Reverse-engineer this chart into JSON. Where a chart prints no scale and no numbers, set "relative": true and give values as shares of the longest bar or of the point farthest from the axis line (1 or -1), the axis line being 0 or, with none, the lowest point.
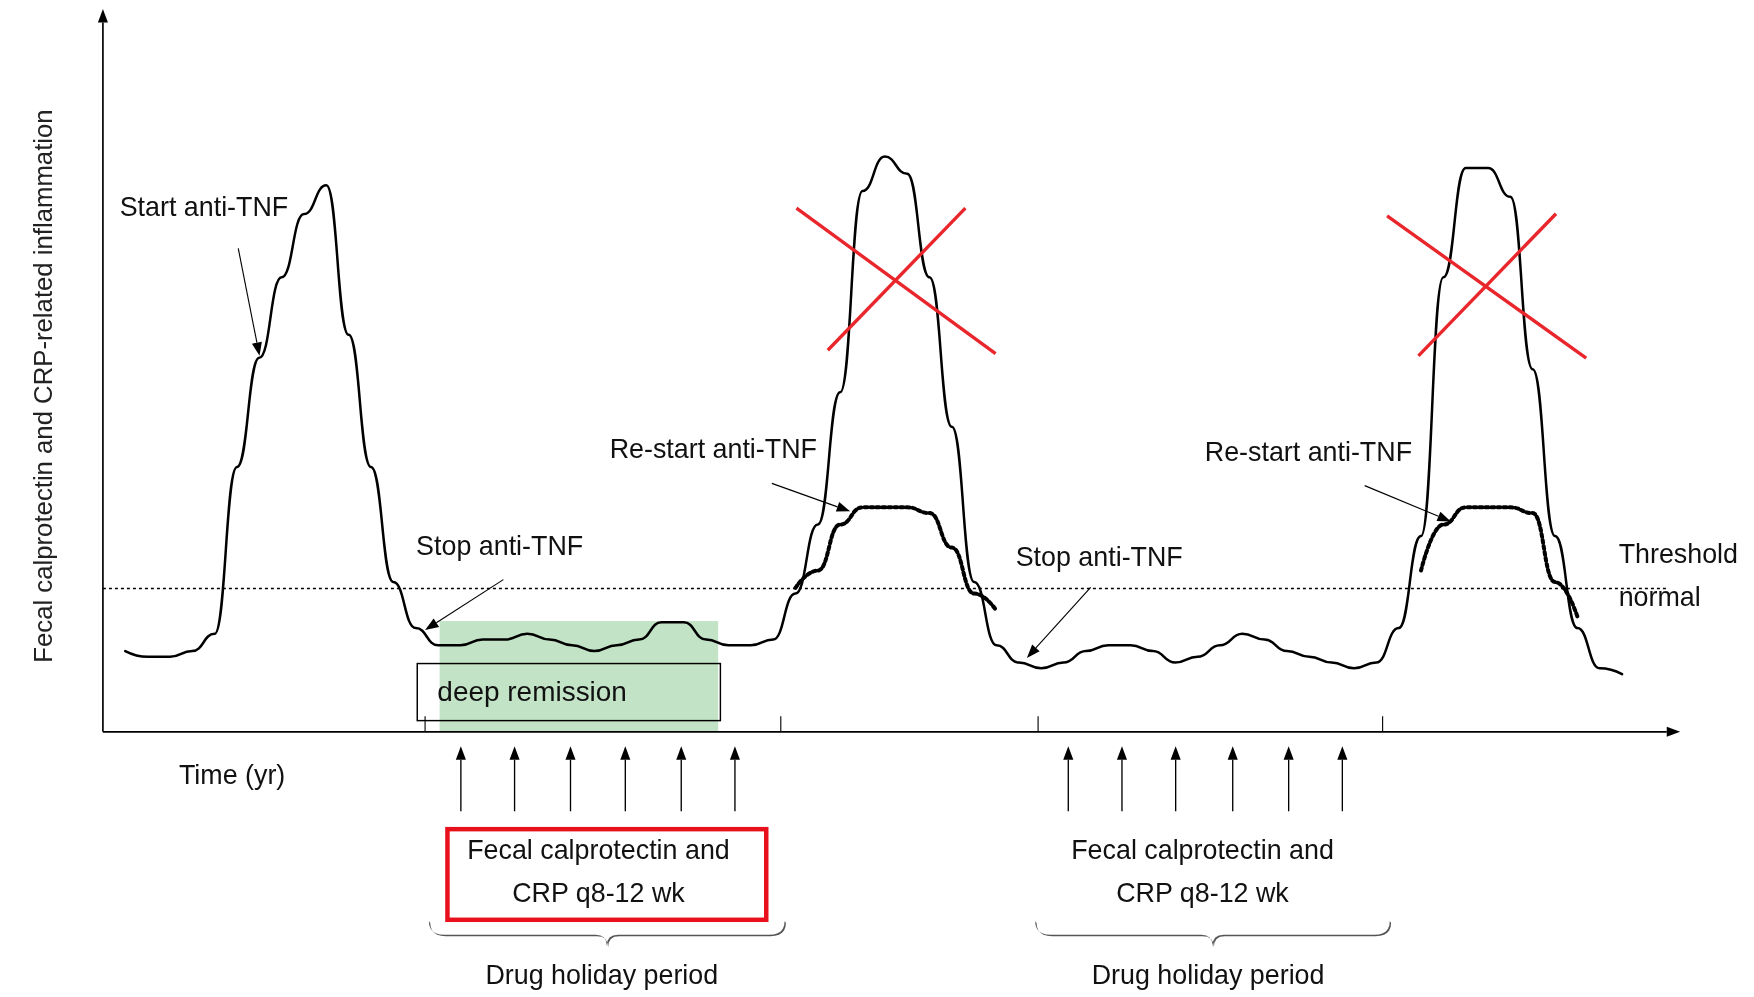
{
  "chart_data": {
    "type": "line",
    "relative": true,
    "marker": "none",
    "xlabel": "Time (yr)",
    "ylabel": "Fecal calprotectin and CRP-related inflammation",
    "categories": [
      null,
      null,
      null,
      null,
      null,
      null,
      null,
      null,
      null,
      null,
      null,
      null,
      null,
      null,
      null,
      null,
      null,
      null,
      null,
      null,
      null,
      null,
      null,
      null,
      null,
      null,
      null,
      null,
      null,
      null,
      null,
      null,
      null,
      null,
      null,
      null,
      null,
      null,
      null,
      null,
      null,
      null,
      null,
      null,
      null,
      null,
      null,
      null,
      null,
      null,
      null,
      null,
      null,
      null,
      null,
      null,
      null,
      null,
      null,
      null,
      null,
      null,
      null,
      null,
      null,
      null,
      null,
      null,
      null,
      null,
      null
    ],
    "series": [
      {
        "color": "#000000",
        "line_style": "solid",
        "values": [
          null,
          0.14,
          0.13,
          0.13,
          0.14,
          0.17,
          0.46,
          0.65,
          0.79,
          0.9,
          0.95,
          0.69,
          0.46,
          0.26,
          0.18,
          0.15,
          0.15,
          0.16,
          0.16,
          0.17,
          0.16,
          0.15,
          0.14,
          0.15,
          0.16,
          0.19,
          0.19,
          0.16,
          0.15,
          0.15,
          0.16,
          0.24,
          0.36,
          0.59,
          0.94,
          1.0,
          0.97,
          0.79,
          0.53,
          0.26,
          0.15,
          0.12,
          0.11,
          0.12,
          0.14,
          0.15,
          0.15,
          0.14,
          0.12,
          0.13,
          0.15,
          0.17,
          0.16,
          0.14,
          0.13,
          0.12,
          0.11,
          0.12,
          0.18,
          0.34,
          0.79,
          0.98,
          0.98,
          0.93,
          0.63,
          0.34,
          0.18,
          0.11,
          0.1,
          null,
          null
        ]
      },
      {
        "color": "#000000",
        "line_style": "dotted",
        "values": [
          null,
          null,
          null,
          null,
          null,
          null,
          null,
          null,
          null,
          null,
          null,
          null,
          null,
          null,
          null,
          null,
          null,
          null,
          null,
          null,
          null,
          null,
          null,
          null,
          null,
          null,
          null,
          null,
          null,
          null,
          null,
          0.25,
          0.28,
          0.36,
          0.39,
          0.39,
          0.39,
          0.38,
          0.32,
          0.24,
          0.21,
          null,
          null,
          null,
          null,
          null,
          null,
          null,
          null,
          null,
          null,
          null,
          null,
          null,
          null,
          null,
          null,
          null,
          null,
          null,
          null,
          null,
          null,
          null,
          null,
          null,
          null,
          null,
          null,
          null,
          null
        ]
      },
      {
        "color": "#000000",
        "line_style": "dotted",
        "values": [
          null,
          null,
          null,
          null,
          null,
          null,
          null,
          null,
          null,
          null,
          null,
          null,
          null,
          null,
          null,
          null,
          null,
          null,
          null,
          null,
          null,
          null,
          null,
          null,
          null,
          null,
          null,
          null,
          null,
          null,
          null,
          null,
          null,
          null,
          null,
          null,
          null,
          null,
          null,
          null,
          null,
          null,
          null,
          null,
          null,
          null,
          null,
          null,
          null,
          null,
          null,
          null,
          null,
          null,
          null,
          null,
          null,
          null,
          null,
          0.28,
          0.36,
          0.39,
          0.39,
          0.39,
          0.38,
          0.26,
          0.2,
          null,
          null,
          null,
          null
        ]
      }
    ],
    "ref_lines": [
      {
        "axis": "y",
        "value": 0.25,
        "label": "Threshold normal",
        "line_style": "dotted",
        "color": "#000000"
      }
    ],
    "annotations": [
      "Start anti-TNF",
      "Stop anti-TNF",
      "Re-start anti-TNF",
      "Stop anti-TNF",
      "Re-start anti-TNF",
      "deep remission",
      "Fecal calprotectin and CRP q8-12 wk",
      "Fecal calprotectin and CRP q8-12 wk",
      "Drug holiday period",
      "Drug holiday period"
    ]
  }
}
